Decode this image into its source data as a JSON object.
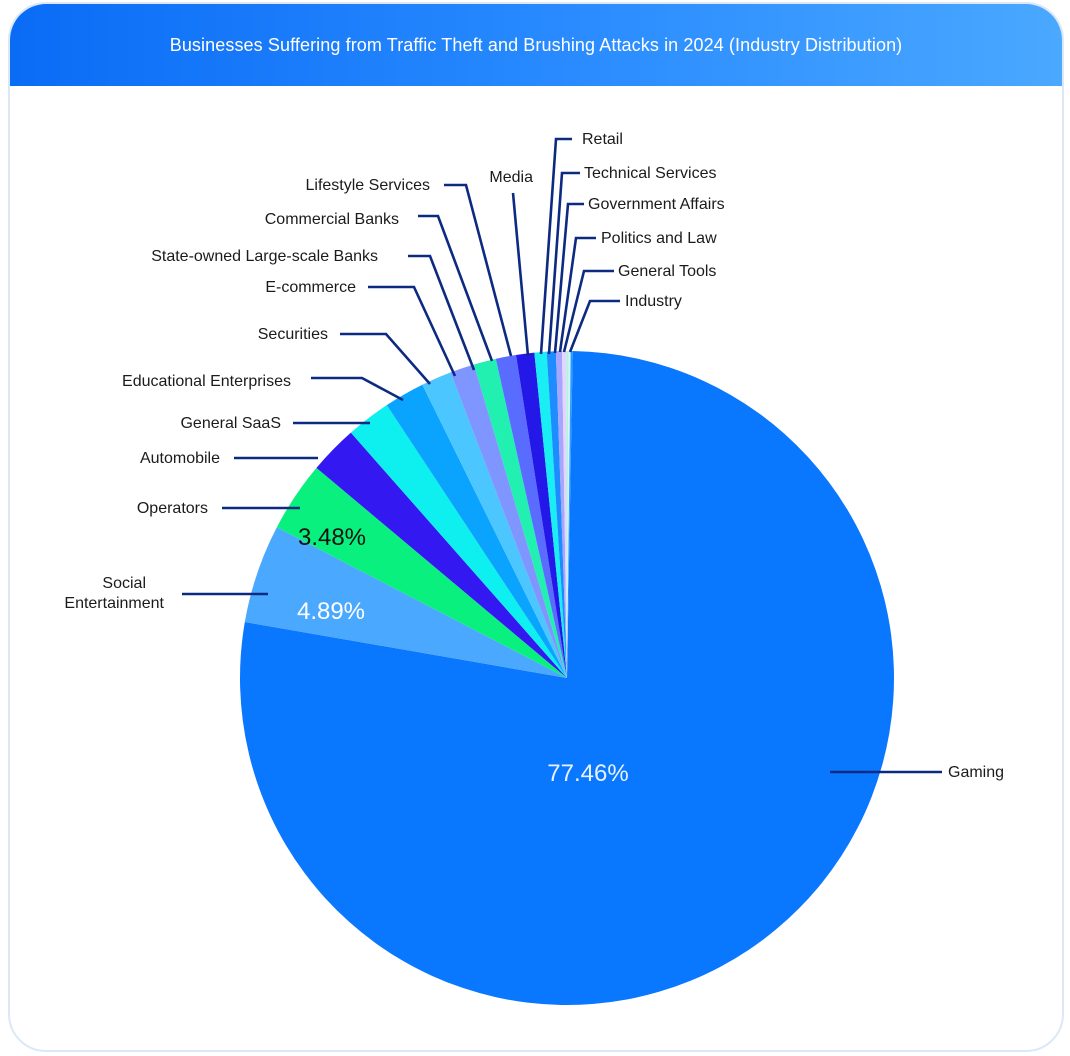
{
  "chart_data": {
    "type": "pie",
    "title": "Businesses Suffering from Traffic Theft and Brushing Attacks in 2024 (Industry Distribution)",
    "slices": [
      {
        "label": "Gaming",
        "value": 77.46,
        "color": "#0a77ff",
        "pct_label": "77.46%",
        "pct_color": "#e8f2ff"
      },
      {
        "label": "Social Entertainment",
        "value": 4.89,
        "color": "#4aa8ff",
        "pct_label": "4.89%",
        "pct_color": "#ffffff"
      },
      {
        "label": "Operators",
        "value": 3.48,
        "color": "#0af07f",
        "pct_label": "3.48%",
        "pct_color": "#111111"
      },
      {
        "label": "Automobile",
        "value": 2.4,
        "color": "#3318f2",
        "pct_label": "",
        "pct_color": ""
      },
      {
        "label": "General SaaS",
        "value": 2.2,
        "color": "#0ef0f0",
        "pct_label": "",
        "pct_color": ""
      },
      {
        "label": "Educational Enterprises",
        "value": 2.0,
        "color": "#0aa4ff",
        "pct_label": "",
        "pct_color": ""
      },
      {
        "label": "Securities",
        "value": 1.5,
        "color": "#4cc6ff",
        "pct_label": "",
        "pct_color": ""
      },
      {
        "label": "E-commerce",
        "value": 1.2,
        "color": "#7f95ff",
        "pct_label": "",
        "pct_color": ""
      },
      {
        "label": "State-owned Large-scale Banks",
        "value": 1.1,
        "color": "#22f0b0",
        "pct_label": "",
        "pct_color": ""
      },
      {
        "label": "Commercial Banks",
        "value": 1.0,
        "color": "#5a6cff",
        "pct_label": "",
        "pct_color": ""
      },
      {
        "label": "Lifestyle Services",
        "value": 0.9,
        "color": "#2418e8",
        "pct_label": "",
        "pct_color": ""
      },
      {
        "label": "Media",
        "value": 0.6,
        "color": "#1aeef5",
        "pct_label": "",
        "pct_color": ""
      },
      {
        "label": "Retail",
        "value": 0.45,
        "color": "#1c8cff",
        "pct_label": "",
        "pct_color": ""
      },
      {
        "label": "Technical Services",
        "value": 0.3,
        "color": "#a6a6ff",
        "pct_label": "",
        "pct_color": ""
      },
      {
        "label": "Government Affairs",
        "value": 0.2,
        "color": "#e4d4ff",
        "pct_label": "",
        "pct_color": ""
      },
      {
        "label": "Politics and Law",
        "value": 0.12,
        "color": "#b0f5dd",
        "pct_label": "",
        "pct_color": ""
      },
      {
        "label": "General Tools",
        "value": 0.1,
        "color": "#d8f0ff",
        "pct_label": "",
        "pct_color": ""
      },
      {
        "label": "Industry",
        "value": 0.1,
        "color": "#2a9cff",
        "pct_label": "",
        "pct_color": ""
      }
    ],
    "label_lines": [
      "Social",
      "Entertainment"
    ],
    "leader_color": "#0d2a82"
  }
}
